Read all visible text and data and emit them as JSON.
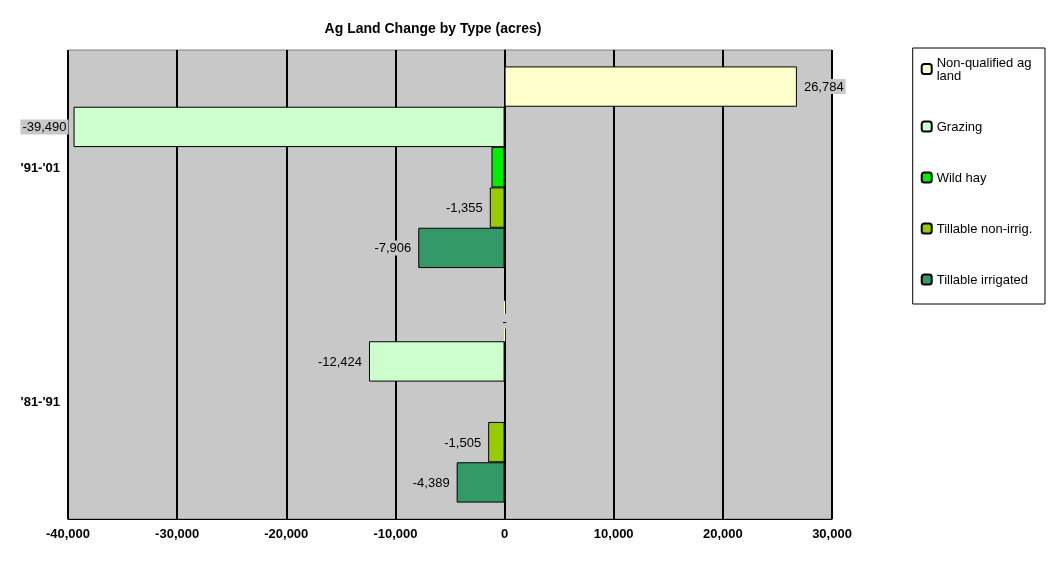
{
  "chart_data": {
    "type": "bar",
    "orientation": "horizontal",
    "title": "Ag Land Change by Type (acres)",
    "categories": [
      "'91-'01",
      "'81-'91"
    ],
    "series": [
      {
        "name": "Non-qualified ag land",
        "color": "#ffffcc",
        "values": [
          26784,
          0
        ],
        "value_labels": [
          "26,784",
          "-"
        ]
      },
      {
        "name": "Grazing",
        "color": "#ccffcc",
        "values": [
          -39490,
          -12424
        ],
        "value_labels": [
          "-39,490",
          "-12,424"
        ]
      },
      {
        "name": "Wild hay",
        "color": "#00ee00",
        "values": [
          -1200,
          null
        ],
        "value_labels": [
          null,
          null
        ]
      },
      {
        "name": "Tillable non-irrig.",
        "color": "#99cc00",
        "values": [
          -1355,
          -1505
        ],
        "value_labels": [
          "-1,355",
          "-1,505"
        ]
      },
      {
        "name": "Tillable irrigated",
        "color": "#339966",
        "values": [
          -7906,
          -4389
        ],
        "value_labels": [
          "-7,906",
          "-4,389"
        ]
      }
    ],
    "xlim": [
      -40000,
      30000
    ],
    "xticks": [
      {
        "value": -40000,
        "label": "-40,000"
      },
      {
        "value": -30000,
        "label": "-30,000"
      },
      {
        "value": -20000,
        "label": "-20,000"
      },
      {
        "value": -10000,
        "label": "-10,000"
      },
      0,
      {
        "value": 10000,
        "label": "10,000"
      },
      {
        "value": 20000,
        "label": "20,000"
      },
      {
        "value": 30000,
        "label": "30,000"
      }
    ],
    "grid": "x",
    "legend": "right"
  }
}
